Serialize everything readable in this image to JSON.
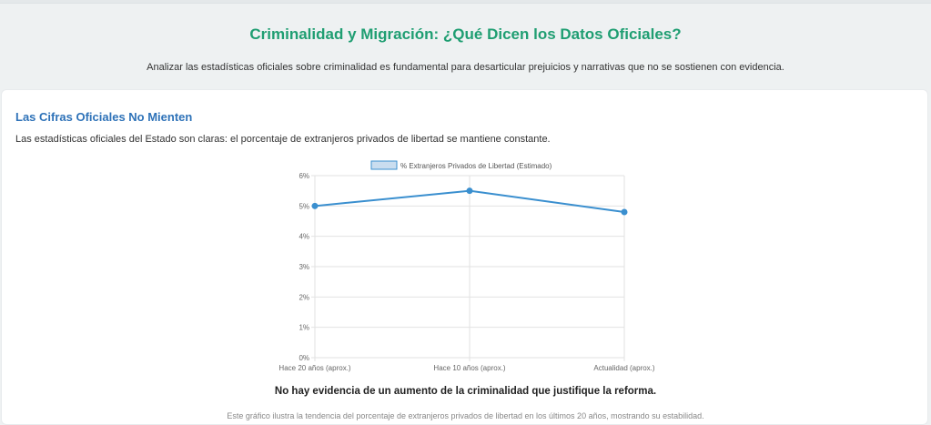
{
  "header": {
    "title": "Criminalidad y Migración: ¿Qué Dicen los Datos Oficiales?",
    "intro": "Analizar las estadísticas oficiales sobre criminalidad es fundamental para desarticular prejuicios y narrativas que no se sostienen con evidencia."
  },
  "section": {
    "title": "Las Cifras Oficiales No Mienten",
    "text": "Las estadísticas oficiales del Estado son claras: el porcentaje de extranjeros privados de libertad se mantiene constante.",
    "conclusion": "No hay evidencia de un aumento de la criminalidad que justifique la reforma.",
    "footnote": "Este gráfico ilustra la tendencia del porcentaje de extranjeros privados de libertad en los últimos 20 años, mostrando su estabilidad."
  },
  "colors": {
    "title": "#1f9e72",
    "section_title": "#2e72b8",
    "line": "#3a8fcf",
    "legend_fill": "#c9ddef"
  },
  "chart_data": {
    "type": "line",
    "title": "",
    "legend": "% Extranjeros Privados de Libertad (Estimado)",
    "legend_position": "top",
    "categories": [
      "Hace 20 años (aprox.)",
      "Hace 10 años (aprox.)",
      "Actualidad (aprox.)"
    ],
    "values": [
      5.0,
      5.5,
      4.8
    ],
    "ylim": [
      0,
      6
    ],
    "yticks": [
      0,
      1,
      2,
      3,
      4,
      5,
      6
    ],
    "ytick_labels": [
      "0%",
      "1%",
      "2%",
      "3%",
      "4%",
      "5%",
      "6%"
    ],
    "grid": true
  }
}
